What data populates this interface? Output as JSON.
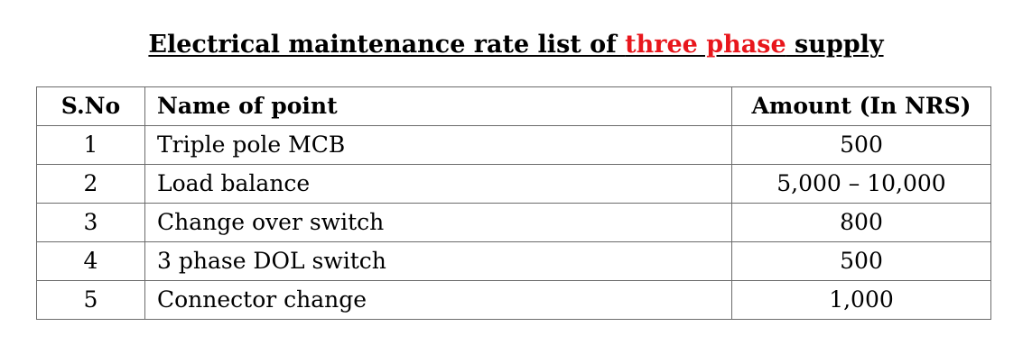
{
  "title": {
    "before": "Electrical maintenance rate list of ",
    "highlight": "three phase",
    "after": " supply",
    "highlight_color": "#e8161c"
  },
  "table": {
    "headers": {
      "sno": "S.No",
      "name": "Name of point",
      "amount": "Amount (In NRS)"
    },
    "rows": [
      {
        "sno": "1",
        "name": "Triple pole MCB",
        "amount": "500"
      },
      {
        "sno": "2",
        "name": "Load balance",
        "amount": "5,000 – 10,000"
      },
      {
        "sno": "3",
        "name": "Change over switch",
        "amount": "800"
      },
      {
        "sno": "4",
        "name": "3 phase DOL switch",
        "amount": "500"
      },
      {
        "sno": "5",
        "name": "Connector change",
        "amount": "1,000"
      }
    ]
  }
}
